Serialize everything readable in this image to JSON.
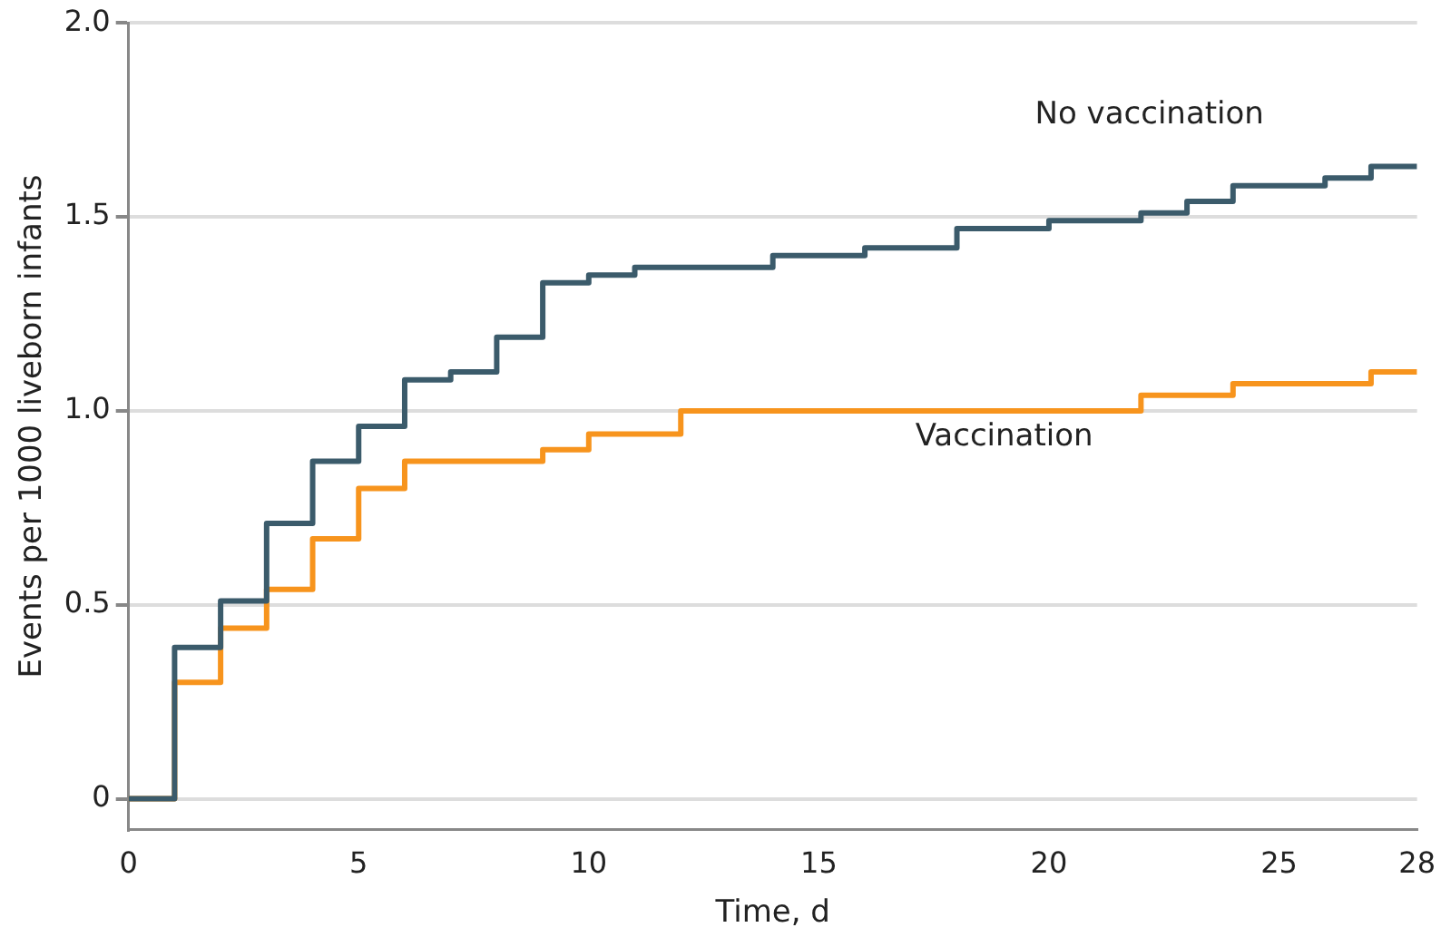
{
  "chart_data": {
    "type": "step",
    "xlabel": "Time, d",
    "ylabel": "Events per 1000 liveborn infants",
    "xlim": [
      0,
      28
    ],
    "xticks": [
      0,
      5,
      10,
      15,
      20,
      25,
      28
    ],
    "ylim": [
      -0.08,
      2.0
    ],
    "yticks": [
      0,
      {
        "value": 0.5,
        "label": "0.5"
      },
      {
        "value": 1,
        "label": "1.0"
      },
      {
        "value": 1.5,
        "label": "1.5"
      },
      {
        "value": 2,
        "label": "2.0"
      }
    ],
    "grid": "y",
    "legend": false,
    "marker": "none",
    "line_style": "solid",
    "series": [
      {
        "name": "No vaccination",
        "color": "#3b5b6b",
        "x": [
          0,
          1,
          2,
          3,
          4,
          5,
          6,
          7,
          8,
          9,
          10,
          11,
          14,
          16,
          18,
          20,
          22,
          23,
          24,
          26,
          27,
          28
        ],
        "values": [
          0,
          0.39,
          0.51,
          0.71,
          0.87,
          0.96,
          1.08,
          1.1,
          1.19,
          1.33,
          1.35,
          1.37,
          1.4,
          1.42,
          1.47,
          1.49,
          1.51,
          1.54,
          1.58,
          1.6,
          1.63,
          1.63
        ]
      },
      {
        "name": "Vaccination",
        "color": "#f7941d",
        "x": [
          0,
          1,
          2,
          3,
          4,
          5,
          6,
          9,
          10,
          12,
          22,
          24,
          27,
          28
        ],
        "values": [
          0,
          0.3,
          0.44,
          0.54,
          0.67,
          0.8,
          0.87,
          0.9,
          0.94,
          1.0,
          1.04,
          1.07,
          1.1,
          1.1
        ]
      }
    ]
  }
}
